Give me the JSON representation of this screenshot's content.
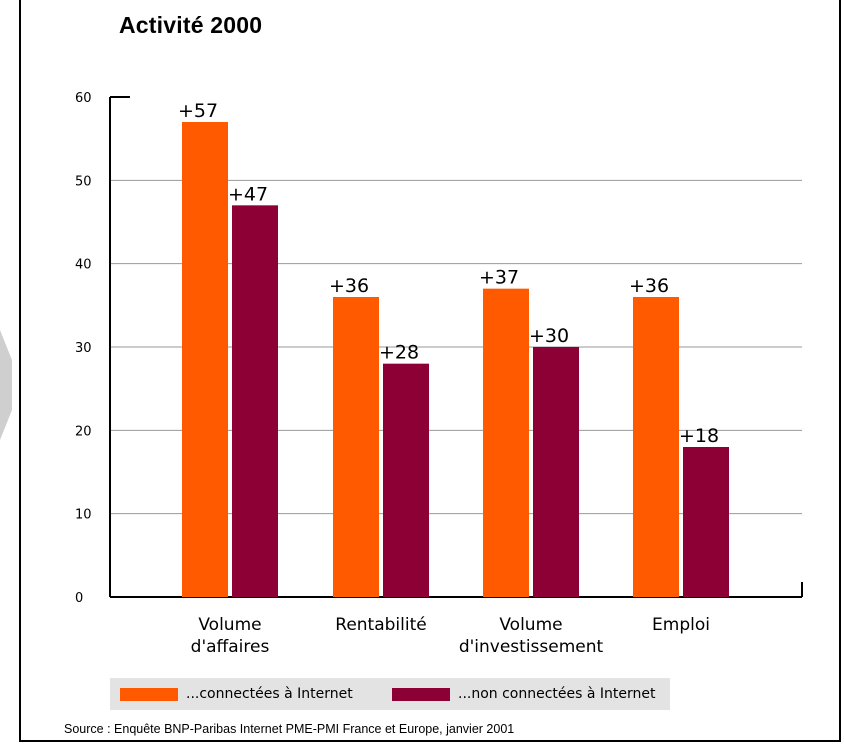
{
  "chart_data": {
    "type": "bar",
    "title": "Activité 2000",
    "categories": [
      [
        "Volume",
        "d'affaires"
      ],
      [
        "Rentabilité"
      ],
      [
        "Volume",
        "d'investissement"
      ],
      [
        "Emploi"
      ]
    ],
    "series": [
      {
        "name": "...connectées à Internet",
        "color": "#ff5a00",
        "values": [
          57,
          36,
          37,
          36
        ],
        "labels": [
          "+57",
          "+36",
          "+37",
          "+36"
        ]
      },
      {
        "name": "...non connectées à Internet",
        "color": "#8c0036",
        "values": [
          47,
          28,
          30,
          18
        ],
        "labels": [
          "+47",
          "+28",
          "+30",
          "+18"
        ]
      }
    ],
    "ylim": [
      0,
      60
    ],
    "yticks": [
      0,
      10,
      20,
      30,
      40,
      50,
      60
    ],
    "grid": true,
    "legend_position": "bottom",
    "source": "Source : Enquête BNP-Paribas Internet PME-PMI France et Europe, janvier 2001"
  }
}
